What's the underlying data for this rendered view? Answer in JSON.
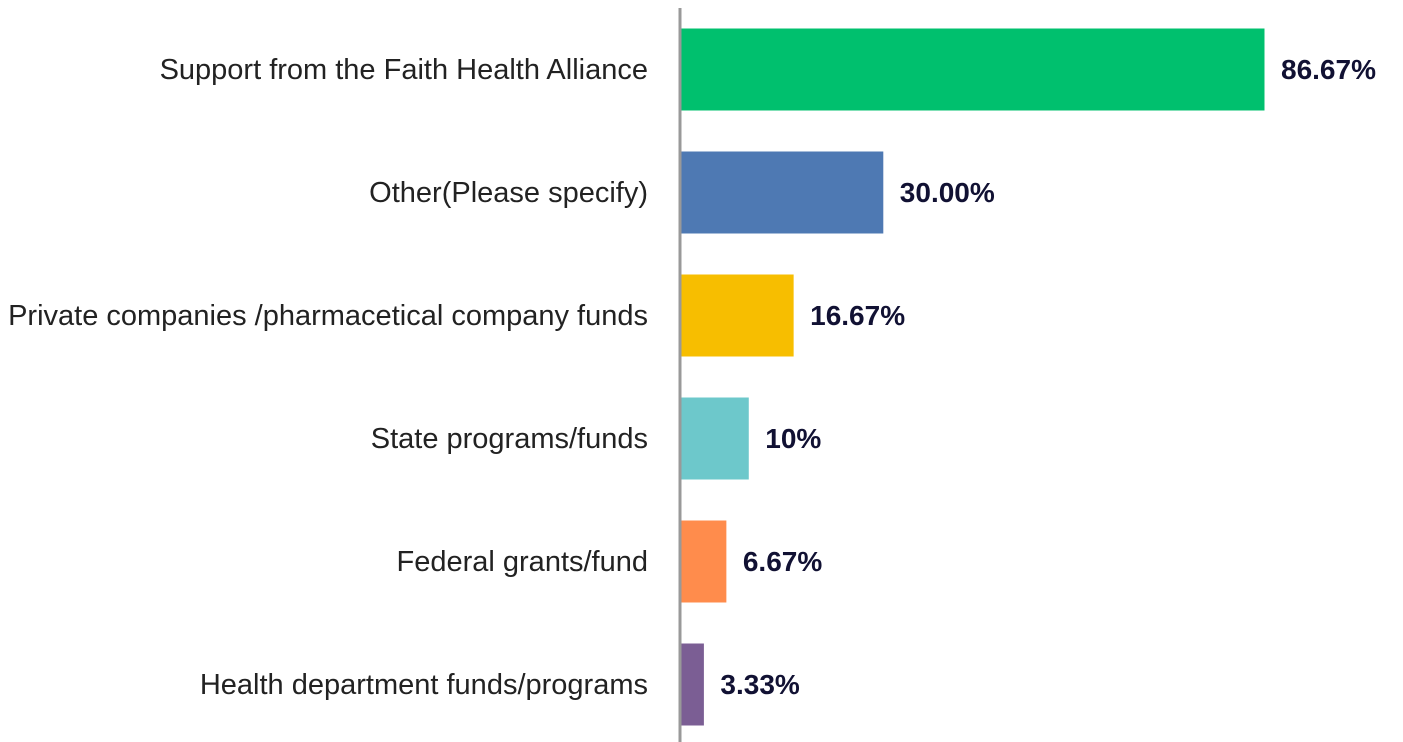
{
  "chart_data": {
    "type": "bar",
    "orientation": "horizontal",
    "categories": [
      "Support from the Faith Health Alliance",
      "Other(Please specify)",
      "Private companies /pharmacetical company funds",
      "State programs/funds",
      "Federal grants/fund",
      "Health department funds/programs"
    ],
    "values": [
      86.67,
      30,
      16.67,
      10,
      6.67,
      3.33
    ],
    "value_labels": [
      "86.67%",
      "30.00%",
      "16.67%",
      "10%",
      "6.67%",
      "3.33%"
    ],
    "colors": [
      "#00c06e",
      "#4e79b3",
      "#f7be00",
      "#6dc8cb",
      "#ff8c4c",
      "#7b5e94"
    ]
  }
}
